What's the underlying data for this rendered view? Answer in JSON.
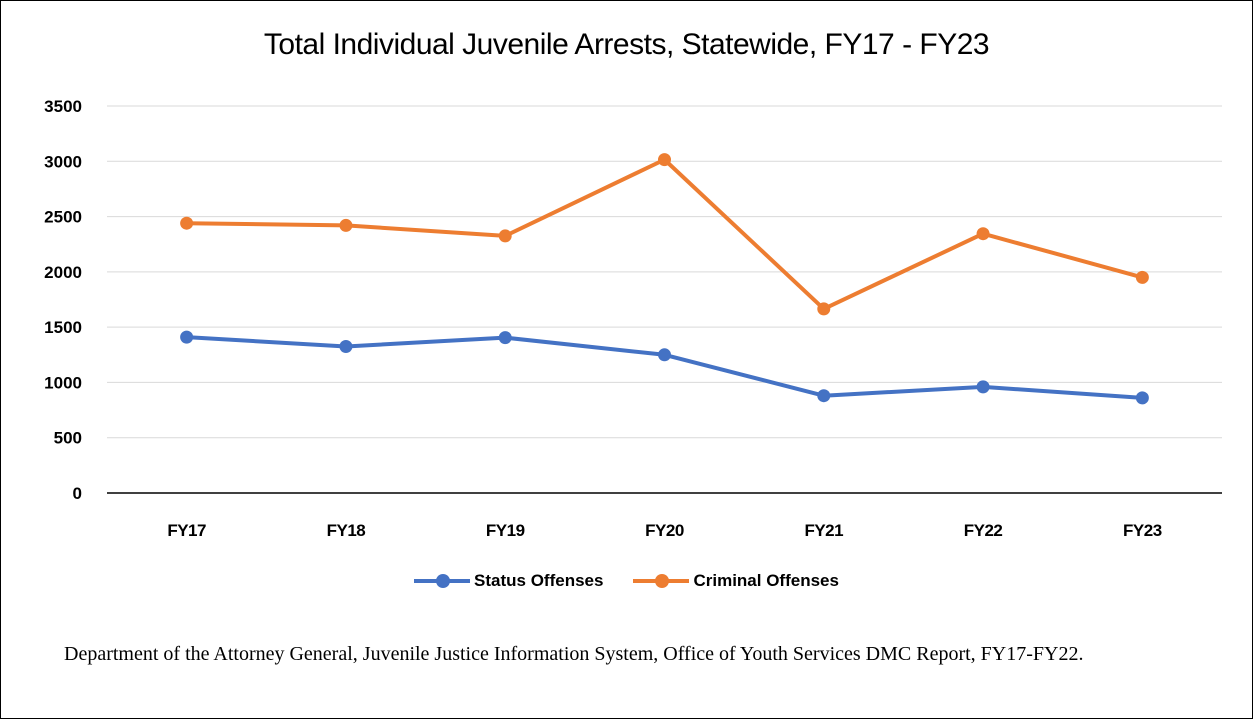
{
  "chart_data": {
    "type": "line",
    "title": "Total Individual Juvenile Arrests, Statewide, FY17 - FY23",
    "categories": [
      "FY17",
      "FY18",
      "FY19",
      "FY20",
      "FY21",
      "FY22",
      "FY23"
    ],
    "series": [
      {
        "name": "Status Offenses",
        "color": "#4472C4",
        "values": [
          1410,
          1325,
          1405,
          1250,
          880,
          960,
          860
        ]
      },
      {
        "name": "Criminal Offenses",
        "color": "#ED7D31",
        "values": [
          2440,
          2420,
          2325,
          3015,
          1665,
          2345,
          1950
        ]
      }
    ],
    "ylim": [
      0,
      3500
    ],
    "yticks": [
      0,
      500,
      1000,
      1500,
      2000,
      2500,
      3000,
      3500
    ],
    "grid": true,
    "legend": "bottom"
  },
  "source_note": "Department of the Attorney General, Juvenile Justice Information System, Office of Youth Services DMC Report, FY17-FY22."
}
